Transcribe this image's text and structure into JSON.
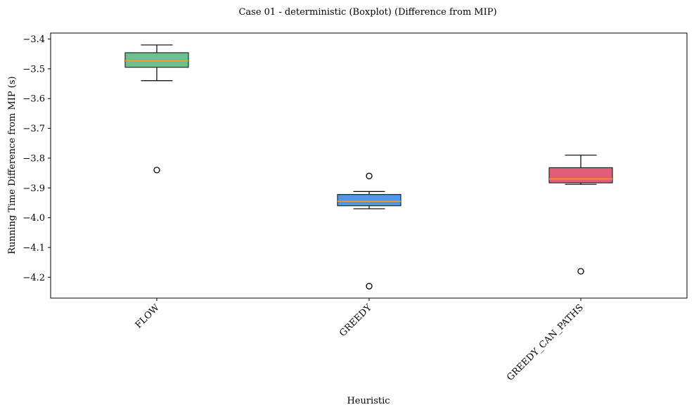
{
  "chart_data": {
    "type": "boxplot",
    "title": "Case 01 - deterministic (Boxplot) (Difference from MIP)",
    "xlabel": "Heuristic",
    "ylabel": "Running Time Difference from MIP (s)",
    "ylim": [
      -4.27,
      -3.38
    ],
    "yticks": [
      -3.4,
      -3.5,
      -3.6,
      -3.7,
      -3.8,
      -3.9,
      -4.0,
      -4.1,
      -4.2
    ],
    "ytick_labels": [
      "−3.4",
      "−3.5",
      "−3.6",
      "−3.7",
      "−3.8",
      "−3.9",
      "−4.0",
      "−4.1",
      "−4.2"
    ],
    "categories": [
      "FLOW",
      "GREEDY",
      "GREEDY_CAN_PATHS"
    ],
    "grid": false,
    "boxes": [
      {
        "category": "FLOW",
        "whisker_low": -3.54,
        "q1": -3.495,
        "median": -3.473,
        "q3": -3.446,
        "whisker_high": -3.42,
        "outliers": [
          -3.84
        ],
        "color": "#6cc08b"
      },
      {
        "category": "GREEDY",
        "whisker_low": -3.97,
        "q1": -3.96,
        "median": -3.945,
        "q3": -3.922,
        "whisker_high": -3.912,
        "outliers": [
          -3.86,
          -4.23
        ],
        "color": "#4c97e6"
      },
      {
        "category": "GREEDY_CAN_PATHS",
        "whisker_low": -3.888,
        "q1": -3.883,
        "median": -3.87,
        "q3": -3.832,
        "whisker_high": -3.79,
        "outliers": [
          -4.18
        ],
        "color": "#e35d7a"
      }
    ],
    "median_color": "#f39c3c"
  }
}
